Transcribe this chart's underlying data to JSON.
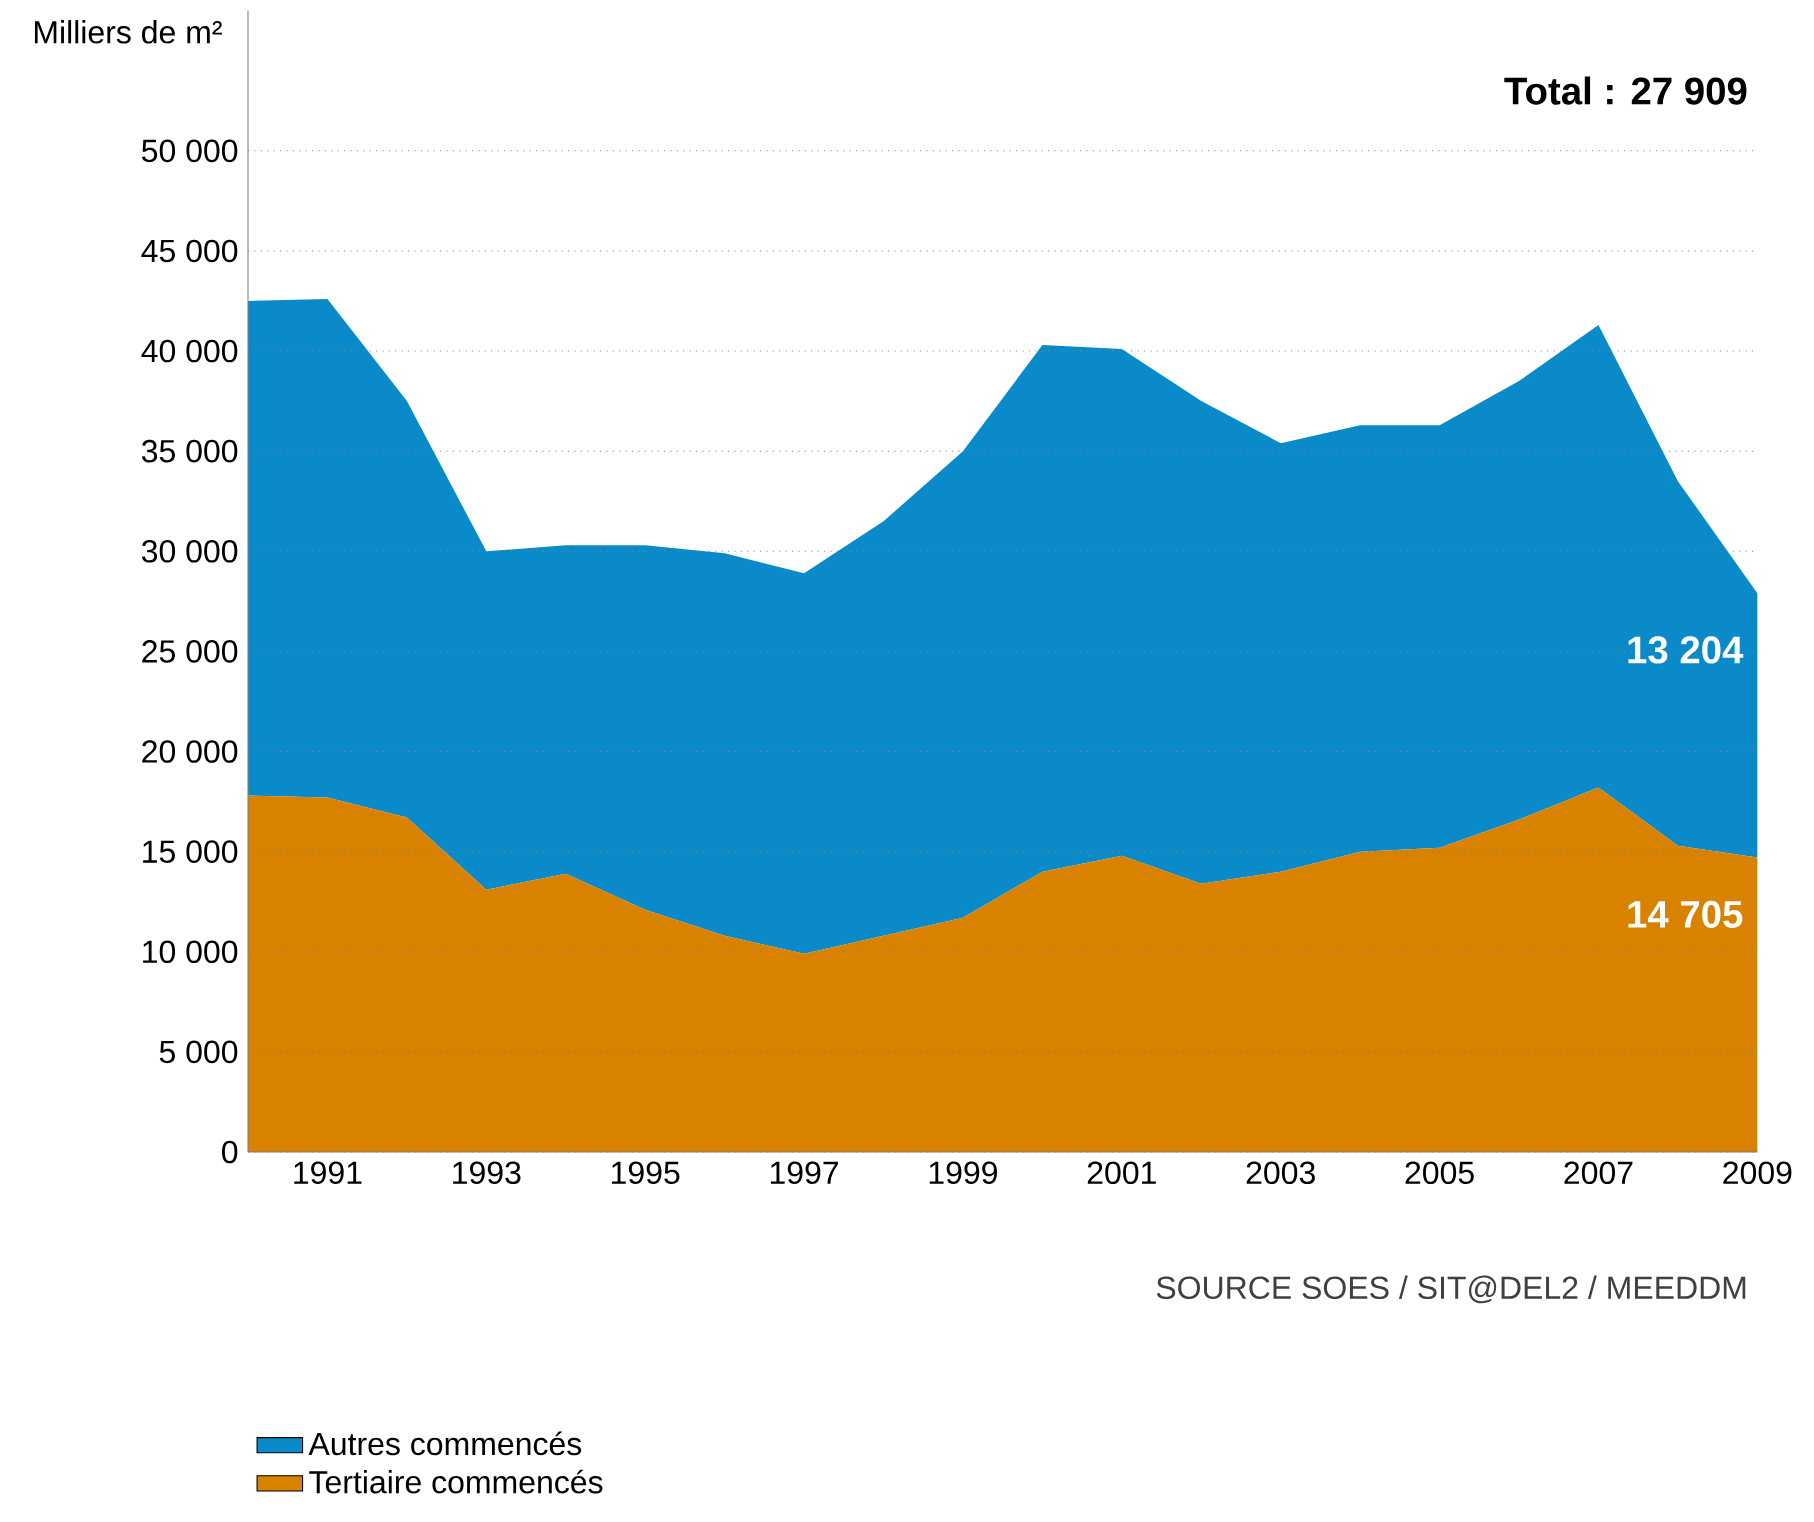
{
  "chart_data": {
    "type": "area",
    "stacked": true,
    "ylabel": "Milliers de m²",
    "x": [
      1990,
      1991,
      1992,
      1993,
      1994,
      1995,
      1996,
      1997,
      1998,
      1999,
      2000,
      2001,
      2002,
      2003,
      2004,
      2005,
      2006,
      2007,
      2008,
      2009
    ],
    "series": [
      {
        "name": "Tertiaire commencés",
        "color": "#d98200",
        "values": [
          17800,
          17700,
          16700,
          13100,
          13900,
          12100,
          10800,
          9900,
          10800,
          11700,
          14000,
          14800,
          13400,
          14000,
          15000,
          15200,
          16600,
          18200,
          15300,
          14705
        ],
        "value_labels": [
          null,
          null,
          null,
          null,
          null,
          null,
          null,
          null,
          null,
          null,
          null,
          null,
          null,
          null,
          null,
          null,
          null,
          null,
          null,
          "14 705"
        ]
      },
      {
        "name": "Autres commencés",
        "color": "#0a8ac8",
        "values": [
          24700,
          24900,
          20800,
          16900,
          16400,
          18200,
          19100,
          19000,
          20700,
          23300,
          26300,
          25300,
          24100,
          21400,
          21300,
          21100,
          21900,
          23100,
          18200,
          13204
        ],
        "value_labels": [
          null,
          null,
          null,
          null,
          null,
          null,
          null,
          null,
          null,
          null,
          null,
          null,
          null,
          null,
          null,
          null,
          null,
          null,
          null,
          "13 204"
        ]
      }
    ],
    "xlim": [
      1990,
      2009
    ],
    "xticks": [
      1991,
      1993,
      1995,
      1997,
      1999,
      2001,
      2003,
      2005,
      2007,
      2009
    ],
    "ylim": [
      0,
      57000
    ],
    "yticks": [
      0,
      {
        "value": 5000,
        "label": "5 000"
      },
      {
        "value": 10000,
        "label": "10 000"
      },
      {
        "value": 15000,
        "label": "15 000"
      },
      {
        "value": 20000,
        "label": "20 000"
      },
      {
        "value": 25000,
        "label": "25 000"
      },
      {
        "value": 30000,
        "label": "30 000"
      },
      {
        "value": 35000,
        "label": "35 000"
      },
      {
        "value": 40000,
        "label": "40 000"
      },
      {
        "value": 45000,
        "label": "45 000"
      },
      {
        "value": 50000,
        "label": "50 000"
      }
    ],
    "grid": "y",
    "legend": "bottom left",
    "annotations": [
      "Total : 27 909",
      "SOURCE SOES / SIT@DEL2 / MEEDDM"
    ]
  }
}
